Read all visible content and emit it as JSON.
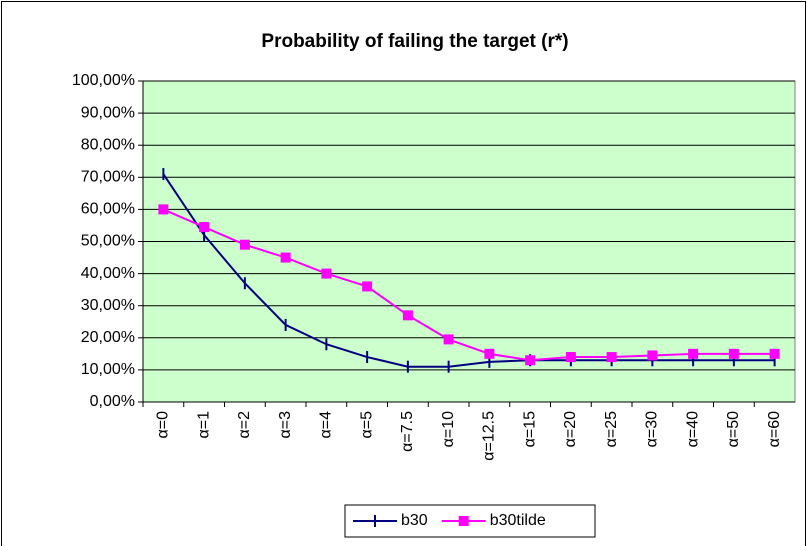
{
  "chart_data": {
    "type": "line",
    "title": "Probability of  failing the target (r*)",
    "categories": [
      "α=0",
      "α=1",
      "α=2",
      "α=3",
      "α=4",
      "α=5",
      "α=7.5",
      "α=10",
      "α=12.5",
      "α=15",
      "α=20",
      "α=25",
      "α=30",
      "α=40",
      "α=50",
      "α=60"
    ],
    "series": [
      {
        "name": "b30",
        "color": "#000080",
        "marker": "dash",
        "values": [
          71,
          52,
          37,
          24,
          18,
          14,
          11,
          11,
          12.5,
          13,
          13,
          13,
          13,
          13,
          13,
          13
        ]
      },
      {
        "name": "b30tilde",
        "color": "#ff00ff",
        "marker": "square",
        "values": [
          60,
          54.5,
          49,
          45,
          40,
          36,
          27,
          19.5,
          15,
          13,
          14,
          14,
          14.5,
          15,
          15,
          15
        ]
      }
    ],
    "ylim": [
      0,
      100
    ],
    "yticks": [
      {
        "value": 0,
        "label": "0,00%"
      },
      {
        "value": 10,
        "label": "10,00%"
      },
      {
        "value": 20,
        "label": "20,00%"
      },
      {
        "value": 30,
        "label": "30,00%"
      },
      {
        "value": 40,
        "label": "40,00%"
      },
      {
        "value": 50,
        "label": "50,00%"
      },
      {
        "value": 60,
        "label": "60,00%"
      },
      {
        "value": 70,
        "label": "70,00%"
      },
      {
        "value": 80,
        "label": "80,00%"
      },
      {
        "value": 90,
        "label": "90,00%"
      },
      {
        "value": 100,
        "label": "100,00%"
      }
    ],
    "grid": true,
    "plot_background": "#ccffcc",
    "legend": "bottom"
  }
}
